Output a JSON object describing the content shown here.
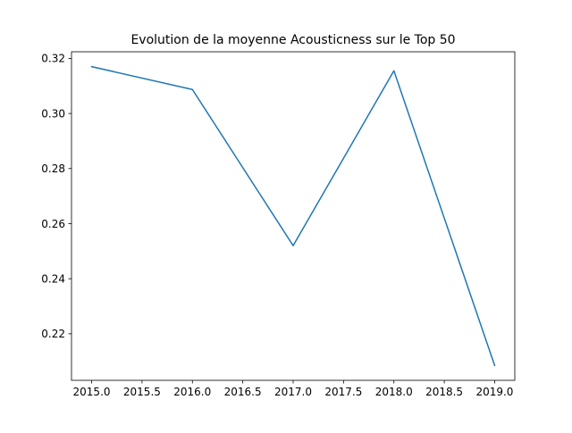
{
  "chart_data": {
    "type": "line",
    "title": "Evolution de la moyenne Acousticness sur le Top 50",
    "xlabel": "",
    "ylabel": "",
    "x": [
      2015.0,
      2016.0,
      2017.0,
      2018.0,
      2019.0
    ],
    "series": [
      {
        "values": [
          0.317,
          0.3087,
          0.252,
          0.3155,
          0.2085
        ],
        "color": "#1f77b4"
      }
    ],
    "xlim": [
      2014.8,
      2019.2
    ],
    "ylim": [
      0.2031,
      0.3224
    ],
    "x_ticks": [
      2015.0,
      2015.5,
      2016.0,
      2016.5,
      2017.0,
      2017.5,
      2018.0,
      2018.5,
      2019.0
    ],
    "x_tick_labels": [
      "2015.0",
      "2015.5",
      "2016.0",
      "2016.5",
      "2017.0",
      "2017.5",
      "2018.0",
      "2018.5",
      "2019.0"
    ],
    "y_ticks": [
      0.22,
      0.24,
      0.26,
      0.28,
      0.3,
      0.32
    ],
    "y_tick_labels": [
      "0.22",
      "0.24",
      "0.26",
      "0.28",
      "0.30",
      "0.32"
    ],
    "grid": false,
    "legend": "none"
  }
}
